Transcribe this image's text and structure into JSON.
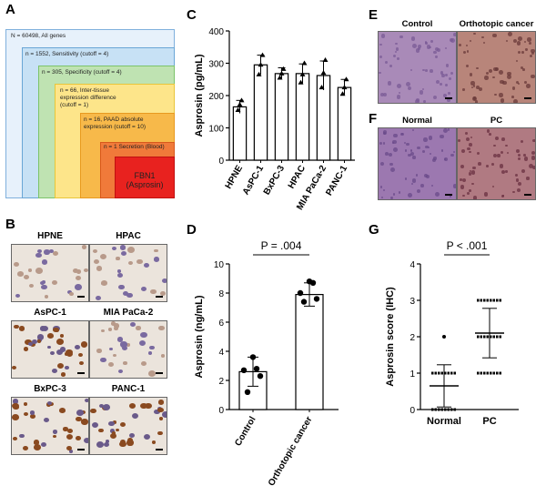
{
  "panels": {
    "A": "A",
    "B": "B",
    "C": "C",
    "D": "D",
    "E": "E",
    "F": "F",
    "G": "G"
  },
  "funnel": [
    {
      "text": "N = 60498, All genes",
      "color": "#e7f1fb",
      "border": "#7fb0dd"
    },
    {
      "text": "n = 1552, Sensitivity (cutoff = 4)",
      "color": "#c7e1f5",
      "border": "#6aa6d6"
    },
    {
      "text": "n = 305, Specificity (cutoff = 4)",
      "color": "#bfe3b2",
      "border": "#7cc36a"
    },
    {
      "text": "n = 66, Inter-tissue expression difference (cutoff = 1)",
      "color": "#fde58a",
      "border": "#e8c53a"
    },
    {
      "text": "n = 16, PAAD absolute expression (cutoff = 10)",
      "color": "#f7b94a",
      "border": "#e89a1f"
    },
    {
      "text": "n = 1 Secretion (Blood)",
      "color": "#f07a3a",
      "border": "#d8581c"
    },
    {
      "text": "FBN1 (Asprosin)",
      "color": "#e8221f",
      "border": "#c01010"
    }
  ],
  "panel_b": {
    "images": [
      "HPNE",
      "HPAC",
      "AsPC-1",
      "MIA PaCa-2",
      "BxPC-3",
      "PANC-1"
    ]
  },
  "panel_e": {
    "images": [
      "Control",
      "Orthotopic cancer"
    ]
  },
  "panel_f": {
    "images": [
      "Normal",
      "PC"
    ]
  },
  "chart_data": [
    {
      "panel": "C",
      "type": "bar",
      "categories": [
        "HPNE",
        "AsPC-1",
        "BxPC-3",
        "HPAC",
        "MIA PaCa-2",
        "PANC-1"
      ],
      "values": [
        165,
        295,
        268,
        268,
        262,
        225
      ],
      "errors": [
        20,
        30,
        18,
        30,
        45,
        25
      ],
      "points": [
        [
          155,
          172,
          185
        ],
        [
          265,
          295,
          325
        ],
        [
          255,
          268,
          282
        ],
        [
          240,
          265,
          300
        ],
        [
          225,
          270,
          310
        ],
        [
          205,
          225,
          250
        ]
      ],
      "ylabel": "Asprosin (pg/mL)",
      "ylim": [
        0,
        400
      ],
      "yticks": [
        0,
        100,
        200,
        300,
        400
      ]
    },
    {
      "panel": "D",
      "type": "bar",
      "categories": [
        "Control",
        "Orthotopic cancer"
      ],
      "values": [
        2.6,
        7.9
      ],
      "errors": [
        1.0,
        0.8
      ],
      "points": [
        [
          1.2,
          2.3,
          2.7,
          2.8,
          3.6
        ],
        [
          7.4,
          7.6,
          8.0,
          8.7,
          8.8
        ]
      ],
      "ylabel": "Asprosin (ng/mL)",
      "ylim": [
        0,
        10
      ],
      "yticks": [
        0,
        2,
        4,
        6,
        8,
        10
      ],
      "annotation": "P = .004"
    },
    {
      "panel": "G",
      "type": "scatter",
      "categories": [
        "Normal",
        "PC"
      ],
      "means": [
        0.65,
        2.1
      ],
      "sd": [
        0.58,
        0.68
      ],
      "levels": [
        [
          0,
          1,
          2
        ],
        [
          1,
          2,
          3
        ]
      ],
      "ylabel": "Asprosin score (IHC)",
      "ylim": [
        0,
        4
      ],
      "yticks": [
        0,
        1,
        2,
        3,
        4
      ],
      "annotation": "P < .001"
    }
  ]
}
